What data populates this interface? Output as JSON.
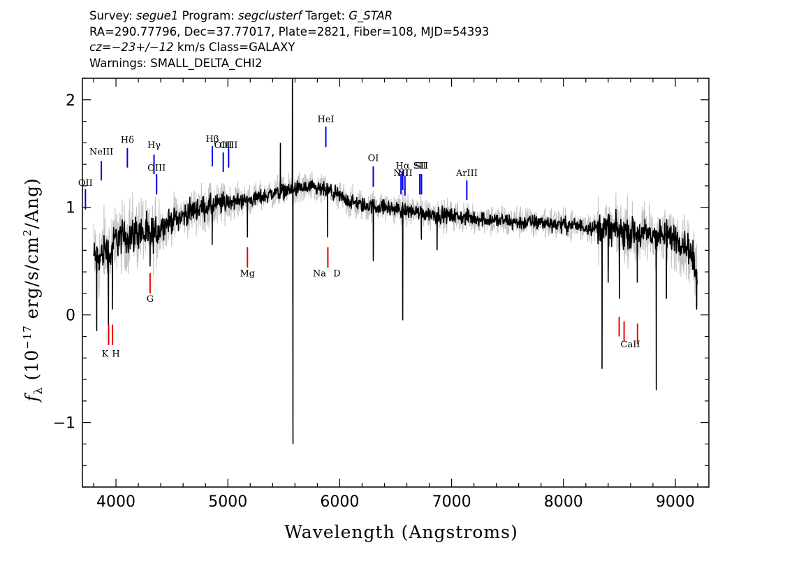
{
  "header": {
    "survey_label": "Survey: ",
    "survey": "segue1",
    "program_label": " Program: ",
    "program": "segclusterf",
    "target_label": " Target: ",
    "target": "G_STAR",
    "line2": "RA=290.77796, Dec=37.77017, Plate=2821, Fiber=108, MJD=54393",
    "cz_label": "cz=",
    "cz_value": "−23+/−12",
    "cz_rest": " km/s Class=GALAXY",
    "warnings": "Warnings: SMALL_DELTA_CHI2"
  },
  "chart_data": {
    "type": "line",
    "xlabel": "Wavelength (Angstroms)",
    "ylabel_prefix": "f",
    "ylabel_sub": "λ",
    "ylabel_body": "(10",
    "ylabel_exp": "−17",
    "ylabel_rest": " erg/s/cm",
    "ylabel_sq": "2",
    "ylabel_end": "/Ang)",
    "xlim": [
      3700,
      9300
    ],
    "ylim": [
      -1.6,
      2.2
    ],
    "x_ticks": [
      4000,
      5000,
      6000,
      7000,
      8000,
      9000
    ],
    "y_ticks": [
      -1,
      0,
      1,
      2
    ],
    "y_tick_labels": [
      "−1",
      "0",
      "1",
      "2"
    ],
    "colors": {
      "flux": "#000000",
      "error": "#c0c0c0",
      "emission": "#0000ee",
      "absorption": "#ee0000"
    },
    "continuum": [
      [
        3800,
        0.55
      ],
      [
        3850,
        0.5
      ],
      [
        3900,
        0.62
      ],
      [
        3950,
        0.55
      ],
      [
        4000,
        0.72
      ],
      [
        4100,
        0.72
      ],
      [
        4200,
        0.78
      ],
      [
        4300,
        0.72
      ],
      [
        4400,
        0.82
      ],
      [
        4500,
        0.88
      ],
      [
        4600,
        0.92
      ],
      [
        4700,
        0.98
      ],
      [
        4800,
        1.0
      ],
      [
        4900,
        1.02
      ],
      [
        5000,
        1.05
      ],
      [
        5100,
        1.06
      ],
      [
        5200,
        1.07
      ],
      [
        5300,
        1.1
      ],
      [
        5400,
        1.13
      ],
      [
        5500,
        1.15
      ],
      [
        5600,
        1.17
      ],
      [
        5700,
        1.18
      ],
      [
        5800,
        1.17
      ],
      [
        5900,
        1.15
      ],
      [
        6000,
        1.1
      ],
      [
        6100,
        1.05
      ],
      [
        6200,
        1.02
      ],
      [
        6400,
        1.0
      ],
      [
        6600,
        0.97
      ],
      [
        6800,
        0.94
      ],
      [
        7000,
        0.92
      ],
      [
        7200,
        0.9
      ],
      [
        7400,
        0.88
      ],
      [
        7600,
        0.86
      ],
      [
        7800,
        0.86
      ],
      [
        8000,
        0.84
      ],
      [
        8200,
        0.82
      ],
      [
        8400,
        0.8
      ],
      [
        8600,
        0.76
      ],
      [
        8800,
        0.74
      ],
      [
        9000,
        0.72
      ],
      [
        9100,
        0.65
      ],
      [
        9150,
        0.55
      ],
      [
        9200,
        0.3
      ]
    ],
    "features": [
      {
        "x": 3828,
        "y": -0.15
      },
      {
        "x": 3933,
        "y": -0.15
      },
      {
        "x": 3968,
        "y": 0.05
      },
      {
        "x": 4305,
        "y": 0.45
      },
      {
        "x": 4860,
        "y": 0.65
      },
      {
        "x": 5175,
        "y": 0.72
      },
      {
        "x": 5470,
        "y": 1.6
      },
      {
        "x": 5577,
        "y": 2.2
      },
      {
        "x": 5582,
        "y": -1.2
      },
      {
        "x": 5892,
        "y": 0.72
      },
      {
        "x": 6300,
        "y": 0.5
      },
      {
        "x": 6563,
        "y": -0.05
      },
      {
        "x": 6730,
        "y": 0.7
      },
      {
        "x": 6870,
        "y": 0.6
      },
      {
        "x": 8345,
        "y": -0.5
      },
      {
        "x": 8400,
        "y": 0.3
      },
      {
        "x": 8500,
        "y": 0.15
      },
      {
        "x": 8660,
        "y": 0.3
      },
      {
        "x": 8830,
        "y": -0.7
      },
      {
        "x": 8920,
        "y": 0.15
      },
      {
        "x": 9190,
        "y": 0.05
      }
    ],
    "emission_lines": [
      {
        "label": "OII",
        "x": 3727,
        "y0": 0.98,
        "y1": 1.17,
        "label_y": 1.2
      },
      {
        "label": "NeIII",
        "x": 3869,
        "y0": 1.25,
        "y1": 1.43,
        "label_y": 1.49
      },
      {
        "label": "Hδ",
        "x": 4102,
        "y0": 1.37,
        "y1": 1.55,
        "label_y": 1.6
      },
      {
        "label": "Hγ",
        "x": 4340,
        "y0": 1.31,
        "y1": 1.49,
        "label_y": 1.55
      },
      {
        "label": "OIII",
        "x": 4363,
        "y0": 1.12,
        "y1": 1.31,
        "label_y": 1.34
      },
      {
        "label": "Hβ",
        "x": 4861,
        "y0": 1.38,
        "y1": 1.57,
        "label_y": 1.61
      },
      {
        "label": "OIII",
        "x": 4959,
        "y0": 1.33,
        "y1": 1.51,
        "label_y": 1.55
      },
      {
        "label": "OIII",
        "x": 5007,
        "y0": 1.37,
        "y1": 1.55,
        "label_y": 1.55
      },
      {
        "label": "HeI",
        "x": 5876,
        "y0": 1.56,
        "y1": 1.75,
        "label_y": 1.79
      },
      {
        "label": "OI",
        "x": 6300,
        "y0": 1.19,
        "y1": 1.38,
        "label_y": 1.43
      },
      {
        "label": "NII",
        "x": 6548,
        "y0": 1.12,
        "y1": 1.31,
        "label_y": 1.29
      },
      {
        "label": "Hα",
        "x": 6563,
        "y0": 1.16,
        "y1": 1.34,
        "label_y": 1.36
      },
      {
        "label": "NII",
        "x": 6583,
        "y0": 1.11,
        "y1": 1.29,
        "label_y": 1.29
      },
      {
        "label": "SII",
        "x": 6716,
        "y0": 1.12,
        "y1": 1.31,
        "label_y": 1.36
      },
      {
        "label": "SII",
        "x": 6731,
        "y0": 1.12,
        "y1": 1.31,
        "label_y": 1.36
      },
      {
        "label": "ArIII",
        "x": 7136,
        "y0": 1.07,
        "y1": 1.25,
        "label_y": 1.29
      }
    ],
    "absorption_lines": [
      {
        "label": "K",
        "x": 3934,
        "y0": -0.28,
        "y1": -0.09,
        "label_y": -0.39
      },
      {
        "label": "H",
        "x": 3969,
        "y0": -0.28,
        "y1": -0.09,
        "label_y": -0.39
      },
      {
        "label": "G",
        "x": 4305,
        "y0": 0.2,
        "y1": 0.39,
        "label_y": 0.12
      },
      {
        "label": "Mg",
        "x": 5175,
        "y0": 0.44,
        "y1": 0.63,
        "label_y": 0.36
      },
      {
        "label": "Na",
        "x": 5894,
        "y0": 0.44,
        "y1": 0.63,
        "label_y": 0.36
      },
      {
        "label": "D",
        "x": 5894,
        "y0": 0.44,
        "y1": 0.44,
        "label_y": 0.36
      },
      {
        "label": "CaII",
        "x": 8498,
        "y0": -0.2,
        "y1": -0.02,
        "label_y": -0.3
      },
      {
        "label": "",
        "x": 8542,
        "y0": -0.25,
        "y1": -0.06,
        "label_y": -0.3
      },
      {
        "label": "",
        "x": 8662,
        "y0": -0.27,
        "y1": -0.08,
        "label_y": -0.3
      }
    ]
  }
}
